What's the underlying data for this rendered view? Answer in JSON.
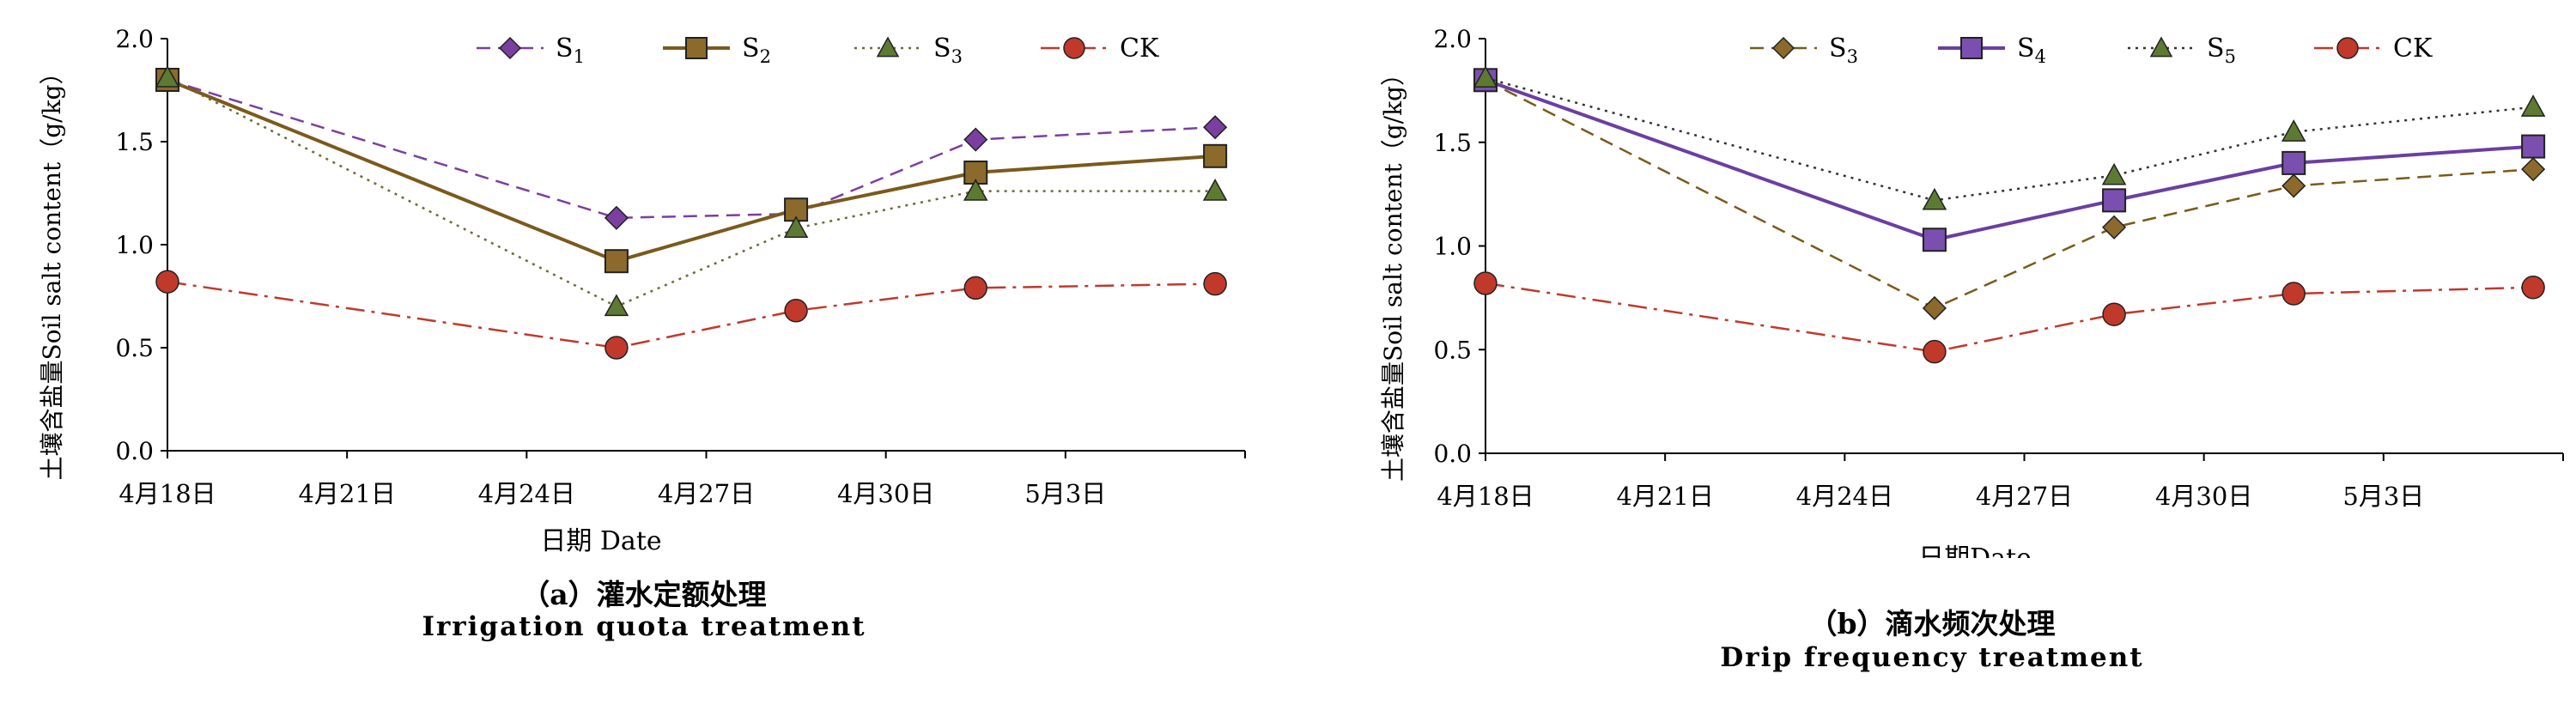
{
  "chart_data": [
    {
      "type": "line",
      "caption_zh": "（a）灌水定额处理",
      "caption_en": "Irrigation quota treatment",
      "ylabel": "土壤含盐量Soil salt content（g/kg）",
      "xlabel": "日期  Date",
      "xticklabels": [
        "4月18日",
        "4月21日",
        "4月24日",
        "4月27日",
        "4月30日",
        "5月3日"
      ],
      "yticklabels": [
        "0.0",
        "0.5",
        "1.0",
        "1.5",
        "2.0"
      ],
      "ylim": [
        0,
        2.0
      ],
      "xlim_days": [
        0,
        18
      ],
      "x_dates": [
        "4月18日",
        "4月25日",
        "4月28日",
        "5月1日",
        "5月4日"
      ],
      "x_days": [
        0,
        7.5,
        10.5,
        13.5,
        17.5
      ],
      "legend_position": "top",
      "series": [
        {
          "label_main": "S",
          "label_sub": "1",
          "values": [
            1.8,
            1.13,
            1.15,
            1.51,
            1.57
          ],
          "color": "#7b3fa0",
          "marker": "diamond",
          "marker_fill": "#7b3fa0",
          "dash": "dashed",
          "width": 2.5
        },
        {
          "label_main": "S",
          "label_sub": "2",
          "values": [
            1.8,
            0.92,
            1.17,
            1.35,
            1.43
          ],
          "color": "#7a5a1c",
          "marker": "square",
          "marker_fill": "#8b6a2b",
          "dash": "solid",
          "width": 4
        },
        {
          "label_main": "S",
          "label_sub": "3",
          "values": [
            1.81,
            0.7,
            1.08,
            1.26,
            1.26
          ],
          "color": "#6f6a35",
          "marker": "triangle",
          "marker_fill": "#5d7a33",
          "dash": "dotted",
          "width": 2.5
        },
        {
          "label_main": "CK",
          "label_sub": "",
          "values": [
            0.82,
            0.5,
            0.68,
            0.79,
            0.81
          ],
          "color": "#c0392b",
          "marker": "circle",
          "marker_fill": "#c0392b",
          "dash": "dashdot",
          "width": 2.5
        }
      ]
    },
    {
      "type": "line",
      "caption_zh": "（b）滴水频次处理",
      "caption_en": "Drip frequency treatment",
      "ylabel": "土壤含盐量Soil salt content（g/kg）",
      "xlabel": "日期Date",
      "xticklabels": [
        "4月18日",
        "4月21日",
        "4月24日",
        "4月27日",
        "4月30日",
        "5月3日"
      ],
      "yticklabels": [
        "0.0",
        "0.5",
        "1.0",
        "1.5",
        "2.0"
      ],
      "ylim": [
        0,
        2.0
      ],
      "xlim_days": [
        0,
        18
      ],
      "x_dates": [
        "4月18日",
        "4月25日",
        "4月28日",
        "5月1日",
        "5月4日"
      ],
      "x_days": [
        0,
        7.5,
        10.5,
        13.5,
        17.5
      ],
      "legend_position": "top",
      "series": [
        {
          "label_main": "S",
          "label_sub": "3",
          "values": [
            1.8,
            0.7,
            1.09,
            1.29,
            1.37
          ],
          "color": "#7a5a1c",
          "marker": "diamond",
          "marker_fill": "#8b6a2b",
          "dash": "dashed",
          "width": 2.5
        },
        {
          "label_main": "S",
          "label_sub": "4",
          "values": [
            1.8,
            1.03,
            1.22,
            1.4,
            1.48
          ],
          "color": "#6b3fa0",
          "marker": "square",
          "marker_fill": "#7b4fb0",
          "dash": "solid",
          "width": 4
        },
        {
          "label_main": "S",
          "label_sub": "5",
          "values": [
            1.81,
            1.22,
            1.34,
            1.55,
            1.67
          ],
          "color": "#333333",
          "marker": "triangle",
          "marker_fill": "#5d7a33",
          "dash": "dotted",
          "width": 2.5
        },
        {
          "label_main": "CK",
          "label_sub": "",
          "values": [
            0.82,
            0.49,
            0.67,
            0.77,
            0.8
          ],
          "color": "#c0392b",
          "marker": "circle",
          "marker_fill": "#c0392b",
          "dash": "dashdot",
          "width": 2.5
        }
      ]
    }
  ]
}
